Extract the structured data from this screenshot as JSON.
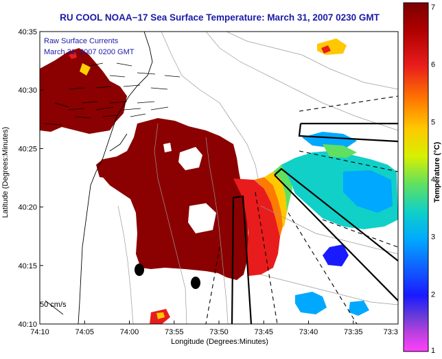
{
  "chart_data": {
    "type": "heatmap",
    "title": "RU COOL  NOAA−17  Sea Surface Temperature:  March 31, 2007 0230 GMT",
    "xlabel": "Longitude (Degrees:Minutes)",
    "ylabel": "Latitude (Degrees:Minutes)",
    "x_ticks": [
      "74:10",
      "74:05",
      "74:00",
      "73:55",
      "73:50",
      "73:45",
      "73:40",
      "73:35",
      "73:3"
    ],
    "y_ticks": [
      "40:35",
      "40:30",
      "40:25",
      "40:20",
      "40:15",
      "40:10"
    ],
    "colorbar": {
      "label": "Temperature (°C)",
      "ticks": [
        "7",
        "6",
        "5",
        "4",
        "3",
        "2",
        "1"
      ],
      "range": [
        1,
        7
      ]
    },
    "annotations": {
      "legend_line1": "Raw Surface Currents",
      "legend_line2": "March 31, 2007 0200 GMT",
      "scale": "50 cm/s"
    },
    "colors": {
      "title": "#1a1aa8",
      "land": "#ffffff",
      "warm": "#8b0000",
      "cold": "#1e3cff"
    }
  }
}
